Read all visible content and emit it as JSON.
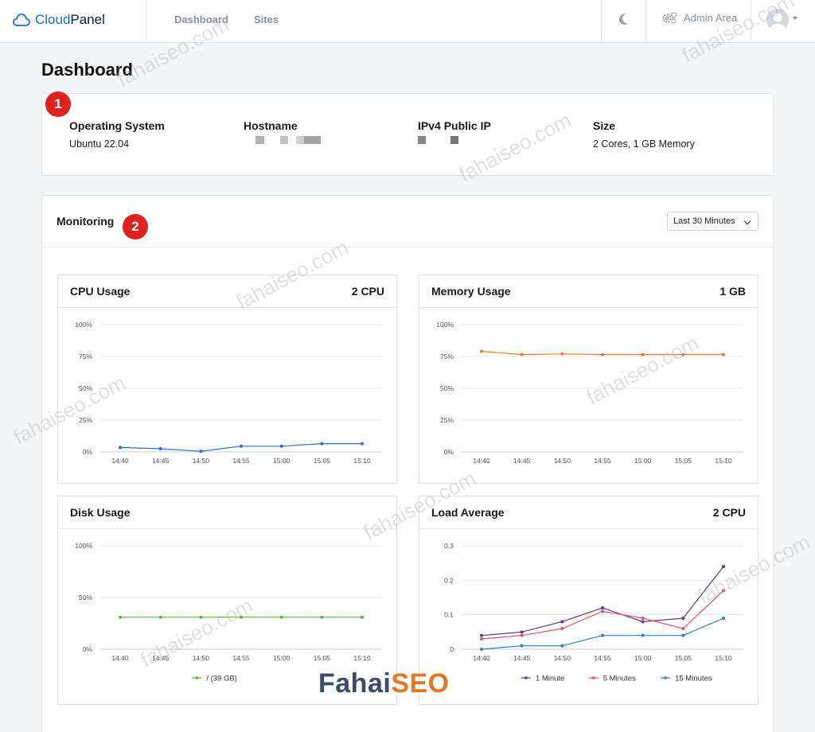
{
  "header": {
    "brand_prefix": "Cloud",
    "brand_suffix": "Panel",
    "nav": [
      {
        "label": "Dashboard"
      },
      {
        "label": "Sites"
      }
    ],
    "admin_label": "Admin Area"
  },
  "page": {
    "title": "Dashboard"
  },
  "badges": [
    "1",
    "2"
  ],
  "info": [
    {
      "label": "Operating System",
      "value": "Ubuntu 22.04"
    },
    {
      "label": "Hostname",
      "value": ""
    },
    {
      "label": "IPv4 Public IP",
      "value": ""
    },
    {
      "label": "Size",
      "value": "2 Cores, 1 GB Memory"
    }
  ],
  "monitoring": {
    "title": "Monitoring",
    "range": "Last 30 Minutes"
  },
  "charts": {
    "cpu": {
      "title": "CPU Usage",
      "sub": "2 CPU"
    },
    "memory": {
      "title": "Memory Usage",
      "sub": "1 GB"
    },
    "disk": {
      "title": "Disk Usage",
      "sub": ""
    },
    "load": {
      "title": "Load Average",
      "sub": "2 CPU"
    }
  },
  "watermark": {
    "text": "fahaiseo.com",
    "brand": "FahaiSEO"
  },
  "colors": {
    "cpu": "#2e6fc4",
    "memory": "#ec7b30",
    "disk": "#5db33a",
    "load1": "#5b3b91",
    "load5": "#e0526e",
    "load15": "#2f7fc6",
    "accent": "#1a6fd6",
    "badge": "#e0201f"
  },
  "chart_data": [
    {
      "type": "line",
      "title": "CPU Usage",
      "x": [
        "14:40",
        "14:45",
        "14:50",
        "14:55",
        "15:00",
        "15:05",
        "15:10"
      ],
      "yticks": [
        "0%",
        "25%",
        "50%",
        "75%",
        "100%"
      ],
      "ylim": [
        0,
        100
      ],
      "series": [
        {
          "values": [
            3.5,
            2.5,
            0.5,
            4.5,
            4.5,
            6.5,
            6.5
          ],
          "color": "#2e6fc4"
        }
      ]
    },
    {
      "type": "line",
      "title": "Memory Usage",
      "x": [
        "14:40",
        "14:45",
        "14:50",
        "14:55",
        "15:00",
        "15:05",
        "15:10"
      ],
      "yticks": [
        "0%",
        "25%",
        "50%",
        "75%",
        "100%"
      ],
      "ylim": [
        0,
        100
      ],
      "series": [
        {
          "values": [
            79,
            76.5,
            77,
            76.5,
            76.5,
            76.5,
            76.5
          ],
          "color": "#ec7b30"
        }
      ]
    },
    {
      "type": "line",
      "title": "Disk Usage",
      "x": [
        "14:40",
        "14:45",
        "14:50",
        "14:55",
        "15:00",
        "15:05",
        "15:10"
      ],
      "yticks": [
        "0%",
        "50%",
        "100%"
      ],
      "ylim": [
        0,
        100
      ],
      "series": [
        {
          "name": "/ (39 GB)",
          "values": [
            31,
            31,
            31,
            31,
            31,
            31,
            31
          ],
          "color": "#5db33a"
        }
      ]
    },
    {
      "type": "line",
      "title": "Load Average",
      "x": [
        "14:40",
        "14:45",
        "14:50",
        "14:55",
        "15:00",
        "15:05",
        "15:10"
      ],
      "yticks": [
        "0",
        "0.1",
        "0.2",
        "0.3"
      ],
      "ylim": [
        0,
        0.3
      ],
      "series": [
        {
          "name": "1 Minute",
          "values": [
            0.04,
            0.05,
            0.08,
            0.12,
            0.08,
            0.09,
            0.24
          ],
          "color": "#5b3b91"
        },
        {
          "name": "5 Minutes",
          "values": [
            0.03,
            0.04,
            0.06,
            0.11,
            0.09,
            0.06,
            0.17
          ],
          "color": "#e0526e"
        },
        {
          "name": "15 Minutes",
          "values": [
            0.0,
            0.01,
            0.01,
            0.04,
            0.04,
            0.04,
            0.09
          ],
          "color": "#2f7fc6"
        }
      ]
    }
  ]
}
